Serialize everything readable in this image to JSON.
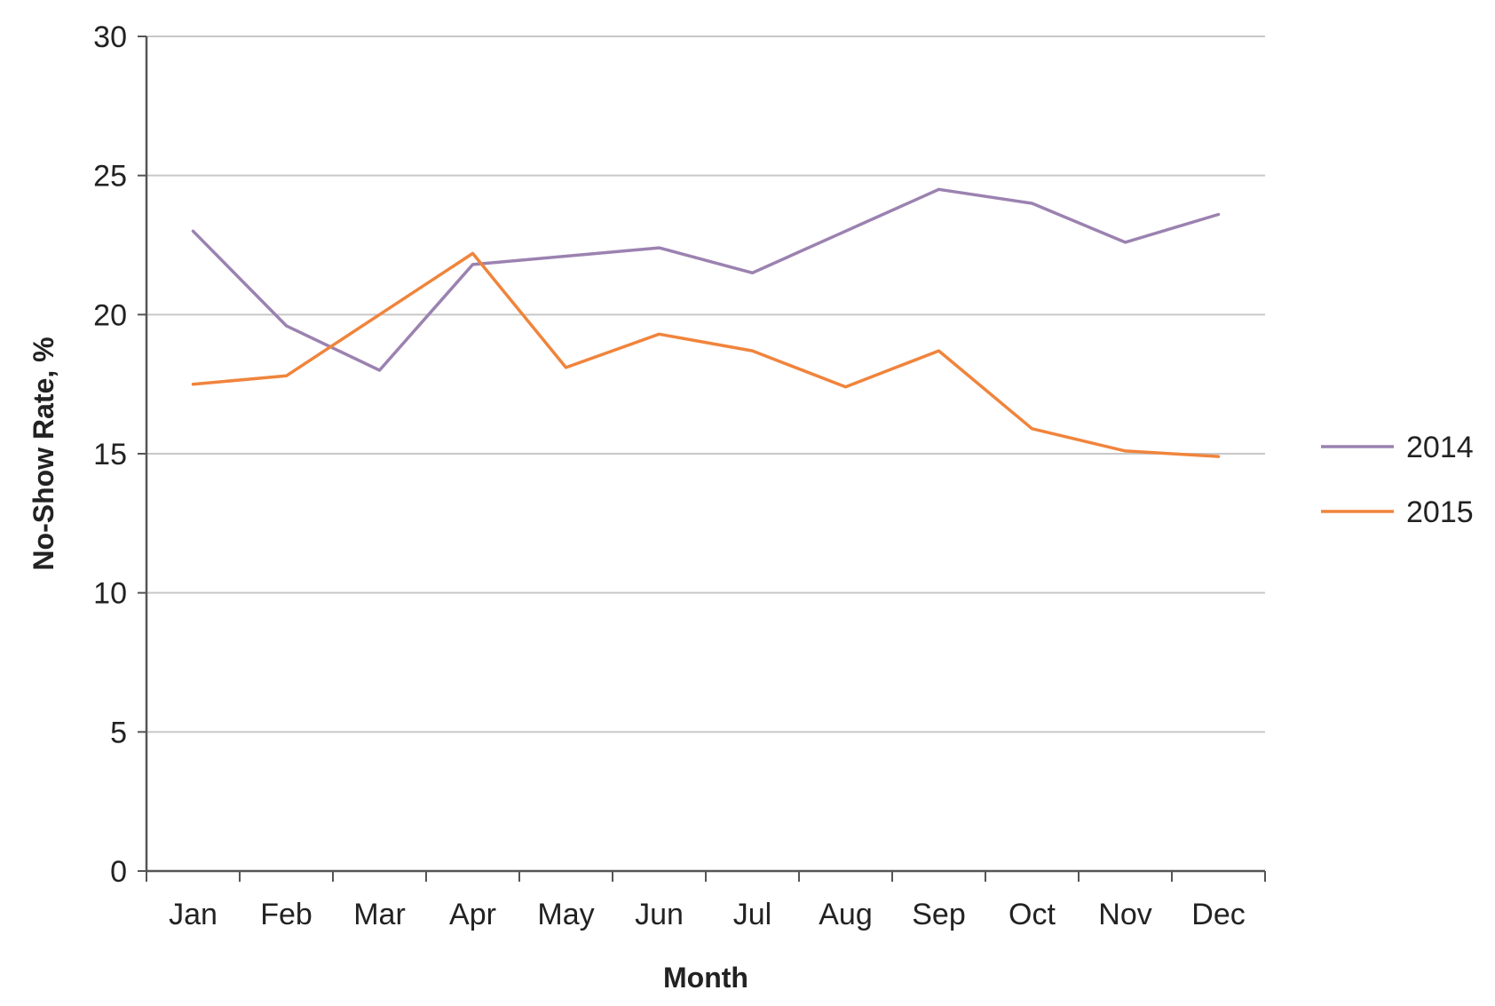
{
  "chart_data": {
    "type": "line",
    "categories": [
      "Jan",
      "Feb",
      "Mar",
      "Apr",
      "May",
      "Jun",
      "Jul",
      "Aug",
      "Sep",
      "Oct",
      "Nov",
      "Dec"
    ],
    "series": [
      {
        "name": "2014",
        "color": "#9b82b0",
        "values": [
          23.0,
          19.6,
          18.0,
          21.8,
          22.1,
          22.4,
          21.5,
          23.0,
          24.5,
          24.0,
          22.6,
          23.6
        ]
      },
      {
        "name": "2015",
        "color": "#f0843c",
        "values": [
          17.5,
          17.8,
          20.0,
          22.2,
          18.1,
          19.3,
          18.7,
          17.4,
          18.7,
          15.9,
          15.1,
          14.9
        ]
      }
    ],
    "title": "",
    "xlabel": "Month",
    "ylabel": "No-Show Rate, %",
    "ylim": [
      0,
      30
    ],
    "yticks": [
      0,
      5,
      10,
      15,
      20,
      25,
      30
    ],
    "grid": true,
    "legend_position": "right"
  }
}
